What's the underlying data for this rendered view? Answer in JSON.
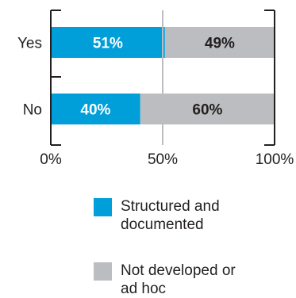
{
  "chart_data": {
    "type": "bar",
    "stacked": true,
    "orientation": "horizontal",
    "categories": [
      "Yes",
      "No"
    ],
    "series": [
      {
        "name": "Structured and documented",
        "color": "#009fda",
        "values": [
          51,
          40
        ]
      },
      {
        "name": "Not developed or ad hoc",
        "color": "#bcbdc0",
        "values": [
          49,
          60
        ]
      }
    ],
    "data_labels": [
      [
        "51%",
        "40%"
      ],
      [
        "49%",
        "60%"
      ]
    ],
    "x_ticks": [
      "0%",
      "50%",
      "100%"
    ],
    "xlim": [
      0,
      100
    ],
    "title": "",
    "xlabel": "",
    "ylabel": "",
    "legend_position": "bottom"
  },
  "legend": {
    "items": [
      {
        "label": "Structured and\ndocumented",
        "color": "#009fda"
      },
      {
        "label": "Not developed or\nad hoc",
        "color": "#bcbdc0"
      }
    ]
  }
}
